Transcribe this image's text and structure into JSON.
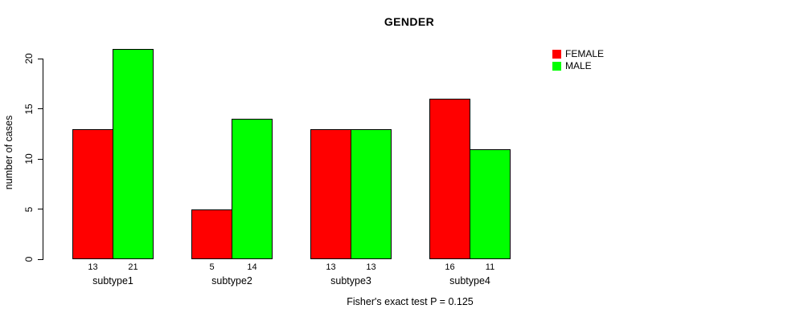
{
  "title": "GENDER",
  "caption": "Fisher's exact test P = 0.125",
  "colors": {
    "female": "#FF0000",
    "male": "#00FF00",
    "axis": "#000000",
    "background": "#FFFFFF"
  },
  "chart_data": {
    "type": "bar",
    "title": "GENDER",
    "xlabel": "",
    "ylabel": "number of cases",
    "categories": [
      "subtype1",
      "subtype2",
      "subtype3",
      "subtype4"
    ],
    "series": [
      {
        "name": "FEMALE",
        "color": "#FF0000",
        "values": [
          13,
          5,
          13,
          16
        ]
      },
      {
        "name": "MALE",
        "color": "#00FF00",
        "values": [
          21,
          14,
          13,
          11
        ]
      }
    ],
    "bar_value_labels": [
      [
        "13",
        "21"
      ],
      [
        "5",
        "14"
      ],
      [
        "13",
        "13"
      ],
      [
        "16",
        "11"
      ]
    ],
    "yticks": [
      0,
      5,
      10,
      15,
      20
    ],
    "ylim": [
      0,
      21
    ],
    "grid": false,
    "legend_position": "right-outside",
    "annotation": "Fisher's exact test P = 0.125"
  }
}
